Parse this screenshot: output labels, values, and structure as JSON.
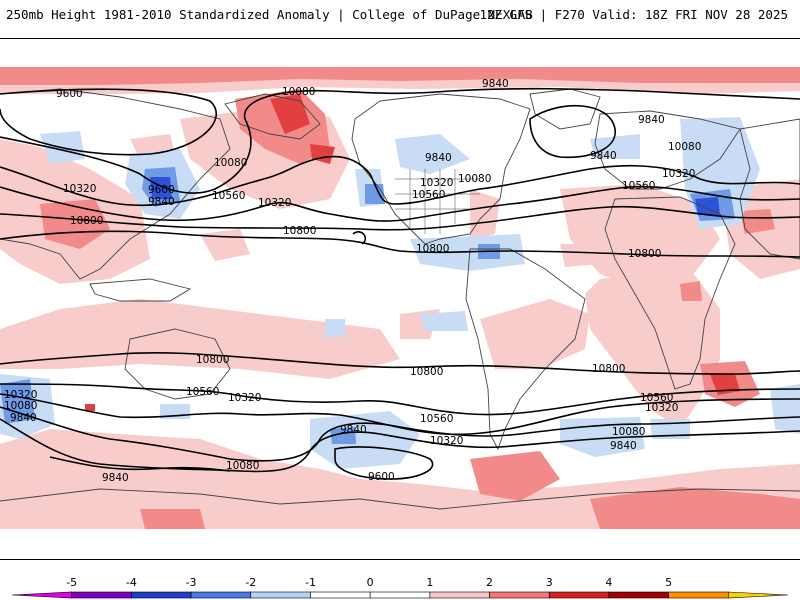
{
  "header": {
    "title": "250mb Height 1981-2010 Standardized Anomaly | College of DuPage NEXLAB",
    "run_info": "12Z GFS | F270 Valid: 18Z FRI NOV 28 2025"
  },
  "contour_labels": [
    {
      "id": "np-9600",
      "text": "9600"
    },
    {
      "id": "np-10080-ak",
      "text": "10080"
    },
    {
      "id": "np-9840-atl",
      "text": "9840"
    },
    {
      "id": "np-9840-eu",
      "text": "9840"
    },
    {
      "id": "np-10320-pac",
      "text": "10320"
    },
    {
      "id": "np-9600-pac",
      "text": "9600"
    },
    {
      "id": "np-9840-pac",
      "text": "9840"
    },
    {
      "id": "np-10080-pac",
      "text": "10080"
    },
    {
      "id": "np-10560-pac",
      "text": "10560"
    },
    {
      "id": "np-10320-pac2",
      "text": "10320"
    },
    {
      "id": "np-10800-asia",
      "text": "10800"
    },
    {
      "id": "np-10800-pac",
      "text": "10800"
    },
    {
      "id": "na-9840",
      "text": "9840"
    },
    {
      "id": "na-10320",
      "text": "10320"
    },
    {
      "id": "na-10560",
      "text": "10560"
    },
    {
      "id": "na-10080",
      "text": "10080"
    },
    {
      "id": "eu-9840",
      "text": "9840"
    },
    {
      "id": "eu-10080",
      "text": "10080"
    },
    {
      "id": "eu-10320",
      "text": "10320"
    },
    {
      "id": "eu-10560",
      "text": "10560"
    },
    {
      "id": "carib-10800",
      "text": "10800"
    },
    {
      "id": "af-10800",
      "text": "10800"
    },
    {
      "id": "sp-10800-aus",
      "text": "10800"
    },
    {
      "id": "sp-10320-w",
      "text": "10320"
    },
    {
      "id": "sp-10080-w",
      "text": "10080"
    },
    {
      "id": "sp-9840-w",
      "text": "9840"
    },
    {
      "id": "sp-10560-aus",
      "text": "10560"
    },
    {
      "id": "sp-10320-aus",
      "text": "10320"
    },
    {
      "id": "sp-10080-aus",
      "text": "10080"
    },
    {
      "id": "sp-9840-aus",
      "text": "9840"
    },
    {
      "id": "sp-9840-pac",
      "text": "9840"
    },
    {
      "id": "sp-9600-pac",
      "text": "9600"
    },
    {
      "id": "sp-10800-pac",
      "text": "10800"
    },
    {
      "id": "sp-10560-pac",
      "text": "10560"
    },
    {
      "id": "sp-10320-pac",
      "text": "10320"
    },
    {
      "id": "sp-10800-af",
      "text": "10800"
    },
    {
      "id": "sp-10560-af",
      "text": "10560"
    },
    {
      "id": "sp-10320-af",
      "text": "10320"
    },
    {
      "id": "sp-10080-af",
      "text": "10080"
    },
    {
      "id": "sp-9840-af",
      "text": "9840"
    }
  ],
  "colorbar": {
    "labels": [
      "-5",
      "-4",
      "-3",
      "-2",
      "-1",
      "0",
      "1",
      "2",
      "3",
      "4",
      "5"
    ],
    "colors": [
      "#e000e0",
      "#8000c0",
      "#1e3fc8",
      "#4a78e6",
      "#b4d2f8",
      "#ffffff",
      "#ffffff",
      "#f8c4c4",
      "#f07878",
      "#d42020",
      "#a00000",
      "#ff9000",
      "#ffd000"
    ]
  },
  "palette": {
    "neg1": "#c8dcf6",
    "neg2": "#6f9ae6",
    "neg3": "#2b52d8",
    "pos1": "#f9cccc",
    "pos2": "#f28a8a",
    "pos3": "#e24040",
    "land": "#444444",
    "contour": "#000000"
  }
}
